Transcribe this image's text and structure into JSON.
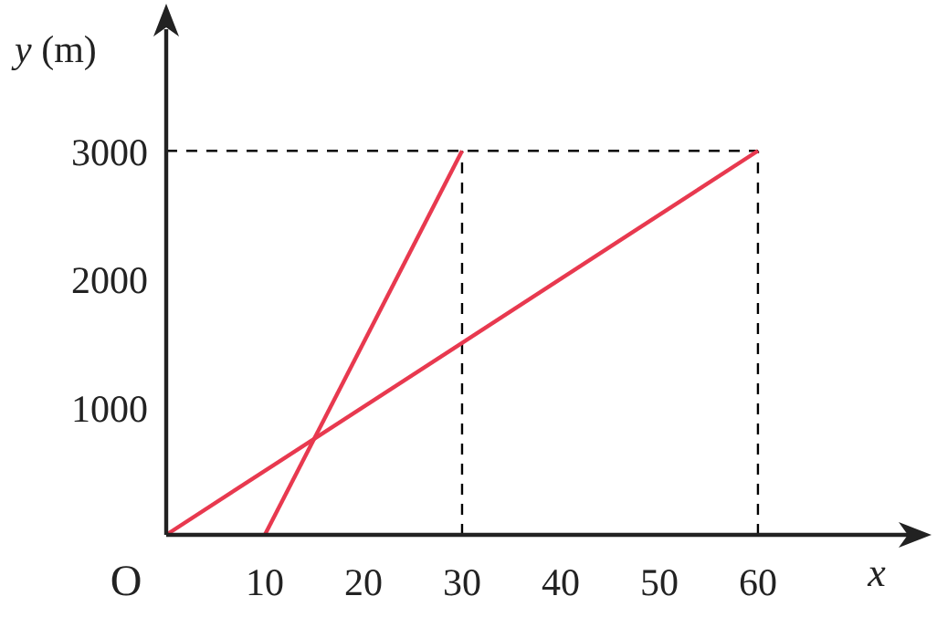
{
  "chart_data": {
    "type": "line",
    "xlabel": "x",
    "ylabel": "y (m)",
    "xlim": [
      0,
      77.6
    ],
    "ylim": [
      0,
      3950
    ],
    "xticks": [
      10,
      20,
      30,
      40,
      50,
      60
    ],
    "annotations": [
      "O"
    ],
    "yticks": [
      1000,
      2000,
      3000
    ],
    "grid": false,
    "line_style": "solid",
    "series": [
      {
        "color": "#e8394f",
        "x": [
          10,
          30
        ],
        "values": [
          0,
          3000
        ]
      },
      {
        "color": "#e8394f",
        "x": [
          0,
          60
        ],
        "values": [
          0,
          3000
        ]
      }
    ],
    "ref_lines": [
      {
        "axis": "y",
        "value": 3000,
        "line_style": "dashed",
        "color": "#000000"
      },
      {
        "axis": "x",
        "value": 30,
        "line_style": "dashed",
        "color": "#000000"
      },
      {
        "axis": "x",
        "value": 60,
        "line_style": "dashed",
        "color": "#000000"
      }
    ]
  }
}
